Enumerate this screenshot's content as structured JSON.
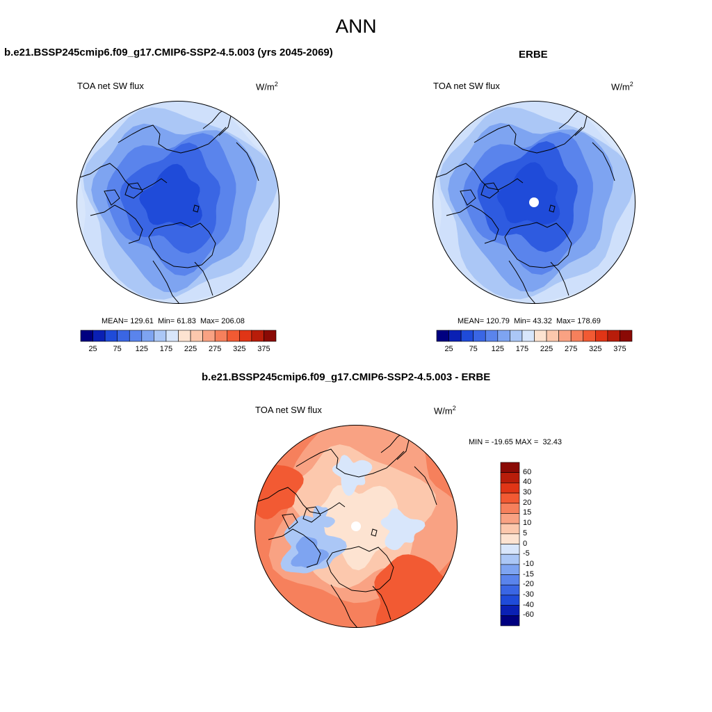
{
  "main_title": "ANN",
  "chart_data": [
    {
      "type": "heatmap",
      "projection": "north-polar-stereographic",
      "title": "b.e21.BSSP245cmip6.f09_g17.CMIP6-SSP2-4.5.003 (yrs 2045-2069)",
      "subtitle": "TOA net SW flux",
      "units": "W/m",
      "units_exp": "2",
      "stats": {
        "mean_label": "MEAN=",
        "mean": "129.61",
        "min_label": "Min=",
        "min": "61.83",
        "max_label": "Max=",
        "max": "206.08"
      },
      "colorbar_orientation": "horizontal",
      "colorbar_ticks": [
        "25",
        "75",
        "125",
        "175",
        "225",
        "275",
        "325",
        "375"
      ],
      "colorbar_levels": [
        25,
        50,
        75,
        100,
        125,
        150,
        175,
        200,
        225,
        250,
        275,
        300,
        325,
        350,
        375
      ],
      "field_rings": [
        {
          "value": 190,
          "color": "#cfe0fb"
        },
        {
          "value": 170,
          "color": "#abc7f6"
        },
        {
          "value": 150,
          "color": "#7ea4f1"
        },
        {
          "value": 130,
          "color": "#5a84ec"
        },
        {
          "value": 110,
          "color": "#3a66e4"
        },
        {
          "value": 90,
          "color": "#1f4bd9"
        }
      ]
    },
    {
      "type": "heatmap",
      "projection": "north-polar-stereographic",
      "title": "ERBE",
      "subtitle": "TOA net SW flux",
      "units": "W/m",
      "units_exp": "2",
      "stats": {
        "mean_label": "MEAN=",
        "mean": "120.79",
        "min_label": "Min=",
        "min": "43.32",
        "max_label": "Max=",
        "max": "178.69"
      },
      "colorbar_orientation": "horizontal",
      "colorbar_ticks": [
        "25",
        "75",
        "125",
        "175",
        "225",
        "275",
        "325",
        "375"
      ],
      "colorbar_levels": [
        25,
        50,
        75,
        100,
        125,
        150,
        175,
        200,
        225,
        250,
        275,
        300,
        325,
        350,
        375
      ],
      "field_rings": [
        {
          "value": 170,
          "color": "#cfe0fb"
        },
        {
          "value": 150,
          "color": "#abc7f6"
        },
        {
          "value": 130,
          "color": "#7ea4f1"
        },
        {
          "value": 110,
          "color": "#5a84ec"
        },
        {
          "value": 90,
          "color": "#2e5be0"
        },
        {
          "value": 70,
          "color": "#1f4bd9"
        }
      ]
    },
    {
      "type": "heatmap",
      "projection": "north-polar-stereographic",
      "title": "b.e21.BSSP245cmip6.f09_g17.CMIP6-SSP2-4.5.003 - ERBE",
      "subtitle": "TOA net SW flux",
      "units": "W/m",
      "units_exp": "2",
      "stats": {
        "min_label": "MIN =",
        "min": "-19.65",
        "max_label": "MAX =",
        "max": "32.43"
      },
      "colorbar_orientation": "vertical",
      "colorbar_ticks": [
        "60",
        "40",
        "30",
        "20",
        "15",
        "10",
        "5",
        "0",
        "-5",
        "-10",
        "-15",
        "-20",
        "-30",
        "-40",
        "-60"
      ],
      "colorbar_levels": [
        -60,
        -40,
        -30,
        -20,
        -15,
        -10,
        -5,
        0,
        5,
        10,
        15,
        20,
        30,
        40,
        60
      ]
    }
  ],
  "colors": {
    "palette_16": [
      "#000080",
      "#0a20b4",
      "#1f4bd9",
      "#3a66e4",
      "#5a84ec",
      "#7ea4f1",
      "#abc7f6",
      "#d8e6fb",
      "#fde3d1",
      "#fcc8ad",
      "#f9a283",
      "#f6805c",
      "#f25a33",
      "#e03516",
      "#b81d0a",
      "#8a0a05"
    ],
    "coast": "#000000",
    "pole_hole": "#ffffff"
  }
}
